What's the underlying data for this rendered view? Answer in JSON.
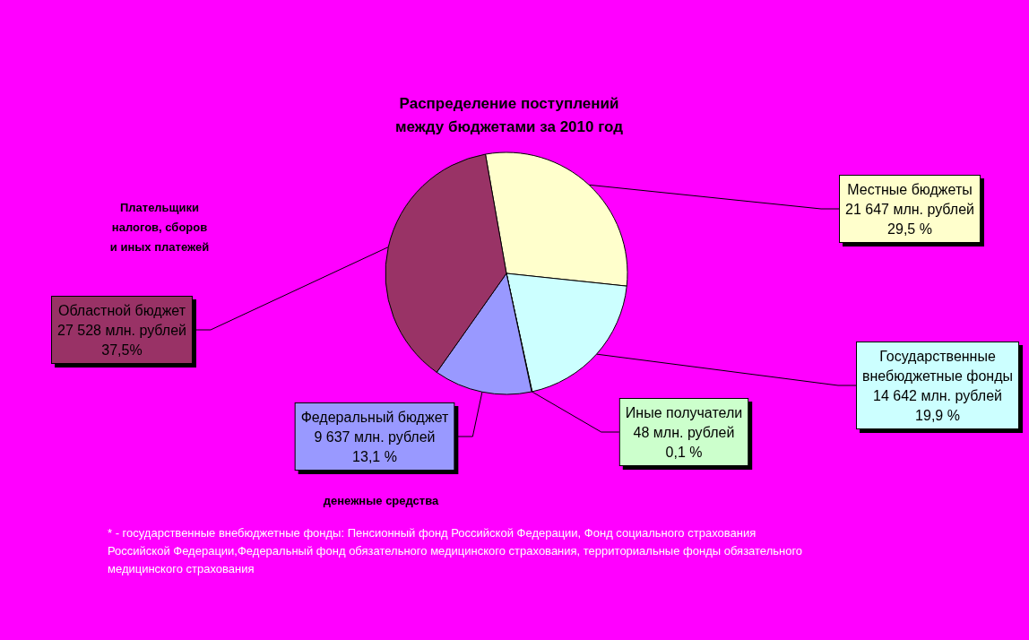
{
  "chart_data": {
    "type": "pie",
    "title": "Распределение поступлений\nмежду бюджетами за 2010 год",
    "categories": [
      "Местные бюджеты",
      "Государственные\nвнебюджетные фонды",
      "Иные получатели",
      "Федеральный бюджет",
      "Областной бюджет"
    ],
    "values": [
      21647,
      14642,
      48,
      9637,
      27528
    ],
    "colors": [
      "#ffffcc",
      "#ccffff",
      "#ccffcc",
      "#9999ff",
      "#993366"
    ],
    "value_labels": [
      "21 647 млн. рублей\n29,5 %",
      "14 642 млн. рублей\n19,9 %",
      "48 млн. рублей\n0,1 %",
      "9 637 млн. рублей\n13,1 %",
      "27 528 млн. рублей\n37,5%"
    ],
    "annotations": [
      "Плательщики\nналогов, сборов\nи иных платежей",
      "денежные средства",
      "* - государственные внебюджетные фонды: Пенсионный фонд Российской Федерации, Фонд социального страхования\nРоссийской Федерации,Федеральный фонд обязательного медицинского страхования, территориальные фонды обязательного\nмедицинского страхования"
    ]
  }
}
